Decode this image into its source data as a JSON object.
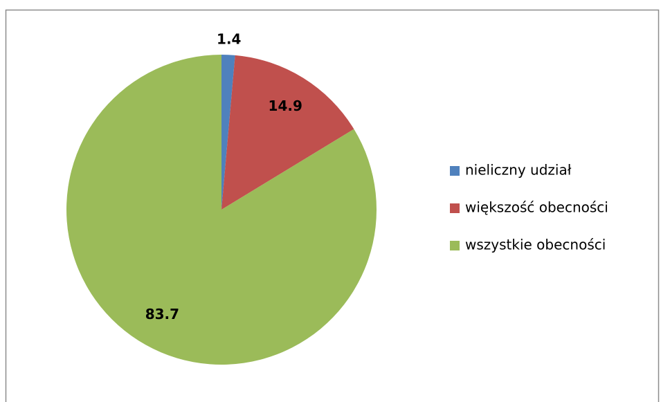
{
  "chart_data": {
    "type": "pie",
    "categories": [
      "nieliczny udział",
      "większość obecności",
      "wszystkie obecności"
    ],
    "values": [
      1.4,
      14.9,
      83.7
    ],
    "colors": [
      "#4f81bd",
      "#c0504d",
      "#9bbb59"
    ],
    "legend": "right"
  }
}
